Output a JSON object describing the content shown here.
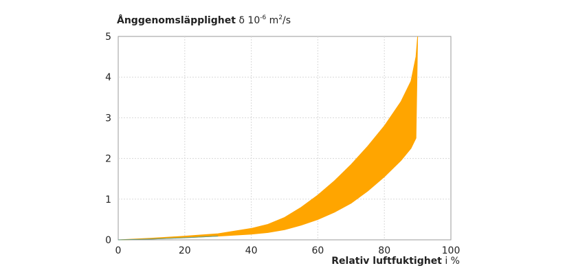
{
  "chart_data": {
    "type": "area",
    "title": "",
    "ylabel": {
      "name": "Ånggenomsläpplighet",
      "symbol": "δ",
      "unit_base": "10",
      "unit_exp": "-6",
      "unit_tail": "m",
      "unit_exp2": "2",
      "unit_end": "/s"
    },
    "xlabel": {
      "name": "Relativ luftfuktighet",
      "unit": "i %"
    },
    "xlim": [
      0,
      100
    ],
    "ylim": [
      0,
      5
    ],
    "xticks": [
      0,
      20,
      40,
      60,
      80,
      100
    ],
    "yticks": [
      0,
      1,
      2,
      3,
      4,
      5
    ],
    "grid": true,
    "fill_color": "#FFA500",
    "edge_color": "#5a9a8a",
    "series": [
      {
        "role": "upper_bound",
        "x": [
          0,
          10,
          20,
          30,
          40,
          45,
          50,
          55,
          60,
          65,
          70,
          75,
          80,
          85,
          88,
          89.5,
          90
        ],
        "values": [
          0,
          0.04,
          0.09,
          0.15,
          0.28,
          0.38,
          0.55,
          0.8,
          1.1,
          1.45,
          1.85,
          2.3,
          2.8,
          3.4,
          3.9,
          4.5,
          5.0
        ]
      },
      {
        "role": "lower_bound",
        "x": [
          0,
          10,
          20,
          30,
          40,
          45,
          50,
          55,
          60,
          65,
          70,
          75,
          80,
          85,
          88,
          89.5,
          90
        ],
        "values": [
          0,
          0.02,
          0.05,
          0.09,
          0.14,
          0.18,
          0.25,
          0.36,
          0.5,
          0.68,
          0.9,
          1.2,
          1.55,
          1.95,
          2.25,
          2.5,
          5.0
        ]
      }
    ]
  }
}
